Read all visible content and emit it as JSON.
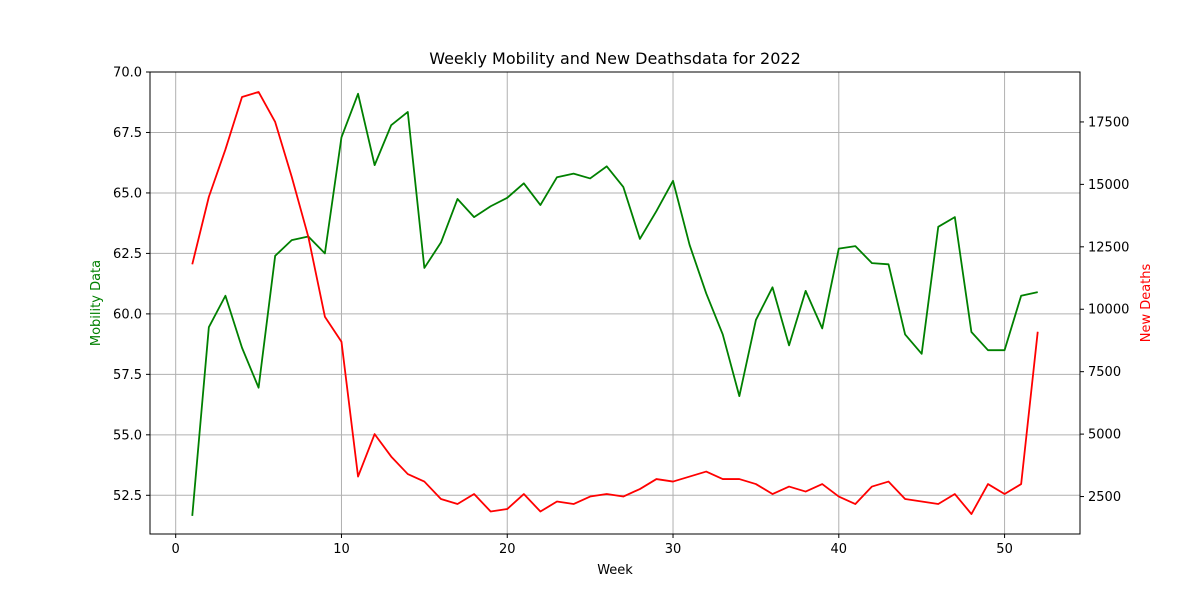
{
  "chart_data": {
    "type": "line",
    "title": "Weekly Mobility and New Deathsdata for 2022",
    "xlabel": "Week",
    "ylabel_left": "Mobility Data",
    "ylabel_right": "New Deaths",
    "xlim": [
      -1.55,
      54.55
    ],
    "ylim_left": [
      50.9,
      70.0
    ],
    "ylim_right": [
      1000,
      19500
    ],
    "x_ticks": [
      0,
      10,
      20,
      30,
      40,
      50
    ],
    "y_ticks_left": [
      "52.5",
      "55.0",
      "57.5",
      "60.0",
      "62.5",
      "65.0",
      "67.5",
      "70.0"
    ],
    "y_ticks_right": [
      "2500",
      "5000",
      "7500",
      "10000",
      "12500",
      "15000",
      "17500"
    ],
    "grid": true,
    "colors": {
      "mobility": "#008000",
      "deaths": "#ff0000"
    },
    "x": [
      1,
      2,
      3,
      4,
      5,
      6,
      7,
      8,
      9,
      10,
      11,
      12,
      13,
      14,
      15,
      16,
      17,
      18,
      19,
      20,
      21,
      22,
      23,
      24,
      25,
      26,
      27,
      28,
      29,
      30,
      31,
      32,
      33,
      34,
      35,
      36,
      37,
      38,
      39,
      40,
      41,
      42,
      43,
      44,
      45,
      46,
      47,
      48,
      49,
      50,
      51,
      52
    ],
    "series": [
      {
        "name": "Mobility Data",
        "axis": "left",
        "values": [
          51.65,
          59.45,
          60.75,
          58.6,
          56.95,
          62.4,
          63.05,
          63.2,
          62.5,
          67.3,
          69.1,
          66.15,
          67.8,
          68.35,
          61.9,
          62.95,
          64.75,
          64.0,
          64.45,
          64.8,
          65.4,
          64.5,
          65.65,
          65.8,
          65.6,
          66.1,
          65.25,
          63.1,
          64.25,
          65.5,
          62.85,
          60.85,
          59.15,
          56.6,
          59.75,
          61.1,
          58.7,
          60.95,
          59.4,
          62.7,
          62.8,
          62.1,
          62.05,
          59.15,
          58.35,
          63.6,
          64.0,
          59.25,
          58.5,
          58.5,
          60.75,
          60.9
        ]
      },
      {
        "name": "New Deaths",
        "axis": "right",
        "values": [
          11800,
          14500,
          16400,
          18500,
          18700,
          17500,
          15300,
          12900,
          9700,
          8700,
          3300,
          5000,
          4100,
          3400,
          3100,
          2400,
          2200,
          2600,
          1900,
          2000,
          2600,
          1900,
          2300,
          2200,
          2500,
          2600,
          2500,
          2800,
          3200,
          3100,
          3300,
          3500,
          3200,
          3200,
          3000,
          2600,
          2900,
          2700,
          3000,
          2500,
          2200,
          2900,
          3100,
          2400,
          2300,
          2200,
          2600,
          1800,
          3000,
          2600,
          3000,
          9100
        ]
      }
    ]
  }
}
